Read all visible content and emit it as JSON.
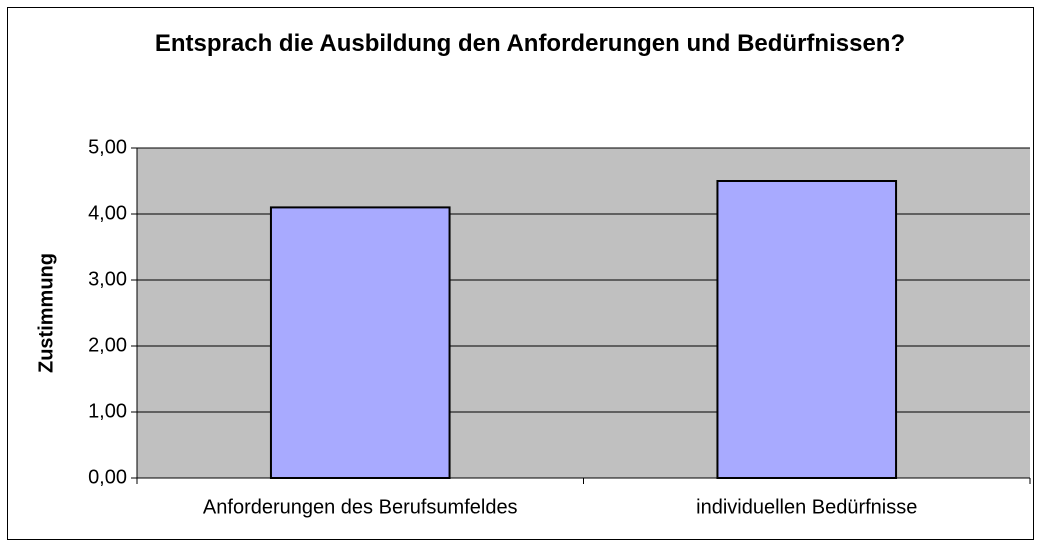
{
  "chart_data": {
    "type": "bar",
    "title": "Entsprach die Ausbildung den Anforderungen und Bedürfnissen?",
    "y_label": "Zustimmung",
    "categories": [
      "Anforderungen des Berufsumfeldes",
      "individuellen Bedürfnisse"
    ],
    "values": [
      4.1,
      4.5
    ],
    "color": "#a8aaff",
    "ylim": [
      0,
      5
    ],
    "yticks": [
      {
        "value": 0,
        "label": "0,00"
      },
      {
        "value": 1,
        "label": "1,00"
      },
      {
        "value": 2,
        "label": "2,00"
      },
      {
        "value": 3,
        "label": "3,00"
      },
      {
        "value": 4,
        "label": "4,00"
      },
      {
        "value": 5,
        "label": "5,00"
      }
    ],
    "grid": true
  }
}
